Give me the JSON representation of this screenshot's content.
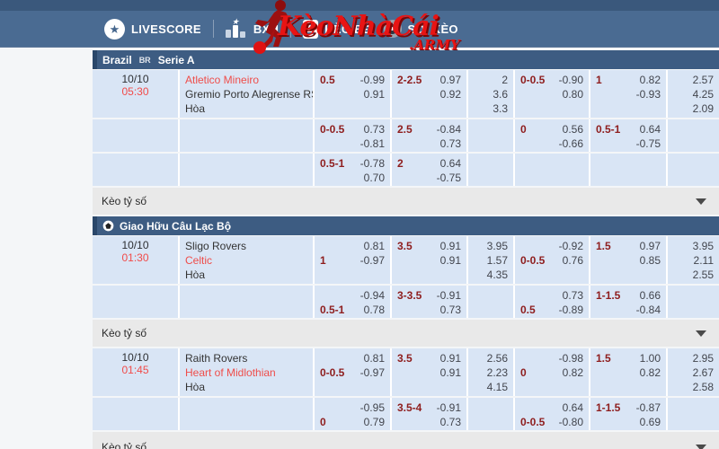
{
  "nav": {
    "items": [
      {
        "id": "livescore",
        "label": "LIVESCORE",
        "icon": "star-circle-icon"
      },
      {
        "id": "bxh",
        "label": "BXH",
        "icon": "ranking-bars-icon"
      },
      {
        "id": "keo-bong-da",
        "label": "KÈO BĐ",
        "icon": "clipboard-icon"
      },
      {
        "id": "soi-keo",
        "label": "SOI KÈO",
        "icon": "target-icon"
      }
    ],
    "logo": {
      "text": "KèoNhàCái",
      "suffix": ".ARMY",
      "icon": "soccer-player-icon"
    }
  },
  "labels": {
    "score_odds": "Kèo tỷ số",
    "draw": "Hòa"
  },
  "colors": {
    "nav_blue": "#4a6b92",
    "nav_strip": "#3a587c",
    "section_blue": "#3d5c82",
    "row_blue": "#d9e5f5",
    "gray_row": "#e9e9e9",
    "logo_red": "#e81414",
    "team_red": "#ef4d4a",
    "handicap_maroon": "#8e1d1d",
    "odds_text": "#42454d"
  },
  "sections": [
    {
      "ball_icon": false,
      "title_parts": [
        {
          "text": "Brazil",
          "small": false
        },
        {
          "text": "BR",
          "small": true
        },
        {
          "text": "Serie A",
          "small": false
        }
      ],
      "matches": [
        {
          "date": "10/10",
          "time": "05:30",
          "home": "Atletico Mineiro",
          "away": "Gremio Porto Alegrense RS",
          "red": "home",
          "main": {
            "hdp_ft": {
              "line": 1,
              "label": "0.5",
              "v1": "-0.99",
              "v2": "0.91"
            },
            "ou_ft": {
              "line": 1,
              "label": "2-2.5",
              "v1": "0.97",
              "v2": "0.92"
            },
            "x12_ft": [
              "2",
              "3.6",
              "3.3"
            ],
            "hdp_h1": {
              "line": 1,
              "label": "0-0.5",
              "v1": "-0.90",
              "v2": "0.80"
            },
            "ou_h1": {
              "line": 1,
              "label": "1",
              "v1": "0.82",
              "v2": "-0.93"
            },
            "x12_h1": [
              "2.57",
              "4.25",
              "2.09"
            ]
          },
          "subrows": [
            {
              "hdp_ft": {
                "line": 1,
                "label": "0-0.5",
                "v1": "0.73",
                "v2": "-0.81"
              },
              "ou_ft": {
                "line": 1,
                "label": "2.5",
                "v1": "-0.84",
                "v2": "0.73"
              },
              "hdp_h1": {
                "line": 1,
                "label": "0",
                "v1": "0.56",
                "v2": "-0.66"
              },
              "ou_h1": {
                "line": 1,
                "label": "0.5-1",
                "v1": "0.64",
                "v2": "-0.75"
              }
            },
            {
              "hdp_ft": {
                "line": 1,
                "label": "0.5-1",
                "v1": "-0.78",
                "v2": "0.70"
              },
              "ou_ft": {
                "line": 1,
                "label": "2",
                "v1": "0.64",
                "v2": "-0.75"
              },
              "hdp_h1": null,
              "ou_h1": null
            }
          ]
        }
      ]
    },
    {
      "ball_icon": true,
      "title_parts": [
        {
          "text": "Giao Hữu Câu Lạc Bộ",
          "small": false
        }
      ],
      "matches": [
        {
          "date": "10/10",
          "time": "01:30",
          "home": "Sligo Rovers",
          "away": "Celtic",
          "red": "away",
          "main": {
            "hdp_ft": {
              "line": 2,
              "label": "1",
              "v1": "0.81",
              "v2": "-0.97"
            },
            "ou_ft": {
              "line": 1,
              "label": "3.5",
              "v1": "0.91",
              "v2": "0.91"
            },
            "x12_ft": [
              "3.95",
              "1.57",
              "4.35"
            ],
            "hdp_h1": {
              "line": 2,
              "label": "0-0.5",
              "v1": "-0.92",
              "v2": "0.76"
            },
            "ou_h1": {
              "line": 1,
              "label": "1.5",
              "v1": "0.97",
              "v2": "0.85"
            },
            "x12_h1": [
              "3.95",
              "2.11",
              "2.55"
            ]
          },
          "subrows": [
            {
              "hdp_ft": {
                "line": 2,
                "label": "0.5-1",
                "v1": "-0.94",
                "v2": "0.78"
              },
              "ou_ft": {
                "line": 1,
                "label": "3-3.5",
                "v1": "-0.91",
                "v2": "0.73"
              },
              "hdp_h1": {
                "line": 2,
                "label": "0.5",
                "v1": "0.73",
                "v2": "-0.89"
              },
              "ou_h1": {
                "line": 1,
                "label": "1-1.5",
                "v1": "0.66",
                "v2": "-0.84"
              }
            }
          ]
        },
        {
          "date": "10/10",
          "time": "01:45",
          "home": "Raith Rovers",
          "away": "Heart of Midlothian",
          "red": "away",
          "main": {
            "hdp_ft": {
              "line": 2,
              "label": "0-0.5",
              "v1": "0.81",
              "v2": "-0.97"
            },
            "ou_ft": {
              "line": 1,
              "label": "3.5",
              "v1": "0.91",
              "v2": "0.91"
            },
            "x12_ft": [
              "2.56",
              "2.23",
              "4.15"
            ],
            "hdp_h1": {
              "line": 2,
              "label": "0",
              "v1": "-0.98",
              "v2": "0.82"
            },
            "ou_h1": {
              "line": 1,
              "label": "1.5",
              "v1": "1.00",
              "v2": "0.82"
            },
            "x12_h1": [
              "2.95",
              "2.67",
              "2.58"
            ]
          },
          "subrows": [
            {
              "hdp_ft": {
                "line": 2,
                "label": "0",
                "v1": "-0.95",
                "v2": "0.79"
              },
              "ou_ft": {
                "line": 1,
                "label": "3.5-4",
                "v1": "-0.91",
                "v2": "0.73"
              },
              "hdp_h1": {
                "line": 2,
                "label": "0-0.5",
                "v1": "0.64",
                "v2": "-0.80"
              },
              "ou_h1": {
                "line": 1,
                "label": "1-1.5",
                "v1": "-0.87",
                "v2": "0.69"
              }
            }
          ]
        }
      ]
    }
  ]
}
